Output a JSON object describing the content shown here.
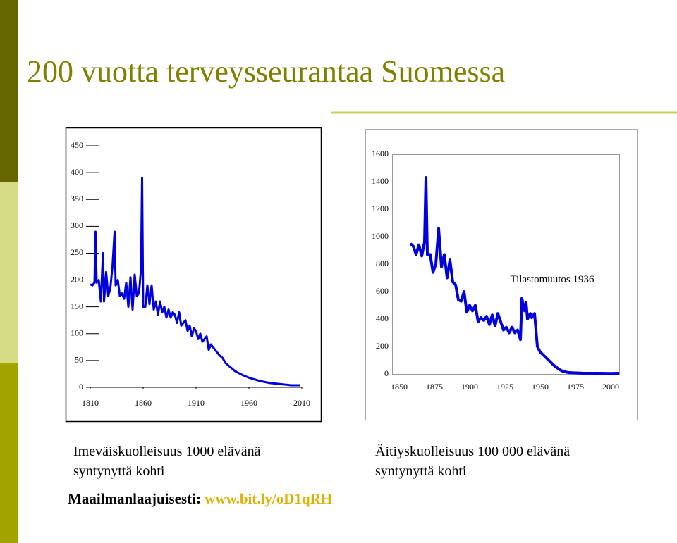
{
  "slide": {
    "title": "200 vuotta terveysseurantaa Suomessa",
    "caption_left": [
      "Imeväiskuolleisuus 1000 elävänä",
      "syntynyttä kohti"
    ],
    "caption_right": [
      "Äitiyskuolleisuus 100 000 elävänä",
      "syntynyttä kohti"
    ],
    "footer_label": "Maailmanlaajuisesti:",
    "footer_link": "www.bit.ly/oD1qRH"
  },
  "chart_data": [
    {
      "type": "line",
      "color": "#0000dd",
      "x": [
        1810,
        1812,
        1814,
        1815,
        1816,
        1818,
        1820,
        1822,
        1823,
        1825,
        1827,
        1829,
        1831,
        1833,
        1834,
        1836,
        1838,
        1840,
        1842,
        1844,
        1846,
        1848,
        1850,
        1852,
        1854,
        1856,
        1858,
        1859,
        1860,
        1862,
        1864,
        1866,
        1868,
        1870,
        1872,
        1874,
        1876,
        1878,
        1880,
        1882,
        1884,
        1886,
        1888,
        1890,
        1892,
        1894,
        1896,
        1898,
        1900,
        1902,
        1904,
        1906,
        1908,
        1910,
        1912,
        1914,
        1916,
        1918,
        1920,
        1922,
        1924,
        1926,
        1928,
        1930,
        1932,
        1935,
        1938,
        1941,
        1944,
        1947,
        1950,
        1955,
        1960,
        1965,
        1970,
        1975,
        1980,
        1985,
        1990,
        1995,
        2000,
        2008
      ],
      "values": [
        192,
        190,
        195,
        290,
        195,
        200,
        160,
        250,
        160,
        215,
        170,
        185,
        225,
        290,
        190,
        200,
        170,
        175,
        165,
        195,
        150,
        205,
        145,
        210,
        170,
        175,
        220,
        390,
        150,
        150,
        190,
        155,
        190,
        145,
        160,
        135,
        160,
        140,
        150,
        130,
        145,
        130,
        140,
        135,
        120,
        140,
        115,
        120,
        125,
        105,
        115,
        95,
        110,
        105,
        90,
        100,
        85,
        90,
        95,
        70,
        80,
        75,
        70,
        65,
        60,
        55,
        45,
        40,
        35,
        30,
        27,
        22,
        18,
        15,
        12,
        10,
        8,
        7,
        6,
        5,
        4,
        4
      ],
      "xlim": [
        1810,
        2010
      ],
      "xticks": [
        1810,
        1860,
        1910,
        1960,
        2010
      ],
      "ylim": [
        0,
        450
      ],
      "yticks": [
        0,
        50,
        100,
        150,
        200,
        250,
        300,
        350,
        400,
        450
      ]
    },
    {
      "type": "line",
      "color": "#0000dd",
      "annotation": "Tilastomuutos 1936",
      "x": [
        1858,
        1860,
        1862,
        1864,
        1866,
        1868,
        1869,
        1870,
        1872,
        1874,
        1876,
        1878,
        1880,
        1882,
        1884,
        1886,
        1888,
        1890,
        1892,
        1894,
        1896,
        1898,
        1900,
        1902,
        1904,
        1906,
        1908,
        1910,
        1912,
        1914,
        1916,
        1918,
        1920,
        1922,
        1924,
        1926,
        1928,
        1930,
        1932,
        1934,
        1936,
        1937,
        1939,
        1940,
        1941,
        1943,
        1944,
        1946,
        1948,
        1950,
        1952,
        1954,
        1956,
        1958,
        1960,
        1962,
        1964,
        1966,
        1970,
        1975,
        1980,
        1990,
        2000,
        2006
      ],
      "values": [
        950,
        930,
        870,
        940,
        860,
        960,
        1430,
        870,
        870,
        740,
        800,
        1060,
        780,
        870,
        700,
        830,
        670,
        650,
        540,
        530,
        600,
        450,
        500,
        460,
        500,
        380,
        410,
        390,
        420,
        360,
        430,
        350,
        440,
        380,
        320,
        340,
        300,
        340,
        300,
        320,
        250,
        550,
        460,
        520,
        400,
        440,
        410,
        440,
        200,
        160,
        140,
        120,
        100,
        80,
        60,
        45,
        30,
        20,
        10,
        8,
        6,
        5,
        4,
        5
      ],
      "xlim": [
        1845,
        2006
      ],
      "xticks": [
        1850,
        1875,
        1900,
        1925,
        1950,
        1975,
        2000
      ],
      "ylim": [
        0,
        1600
      ],
      "yticks": [
        0,
        200,
        400,
        600,
        800,
        1000,
        1200,
        1400,
        1600
      ]
    }
  ]
}
